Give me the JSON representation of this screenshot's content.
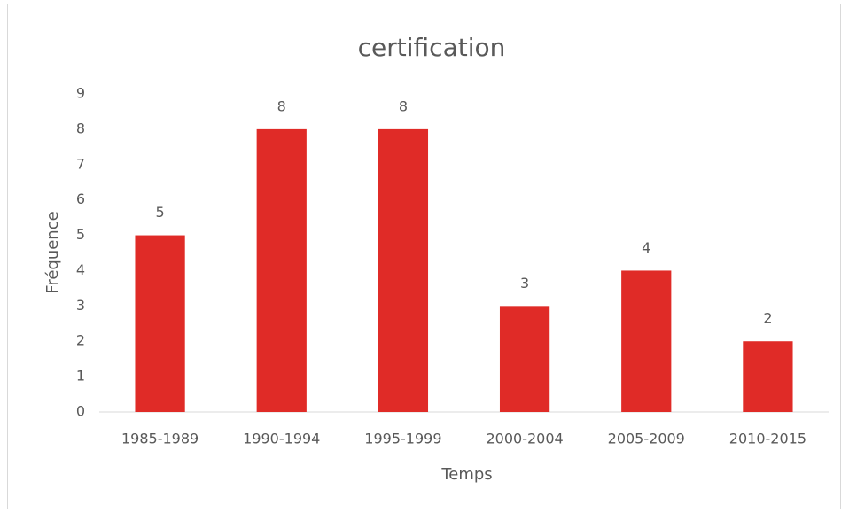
{
  "chart_data": {
    "type": "bar",
    "title": "certification",
    "x_label": "Temps",
    "y_label": "Fréquence",
    "categories": [
      "1985-1989",
      "1990-1994",
      "1995-1999",
      "2000-2004",
      "2005-2009",
      "2010-2015"
    ],
    "values": [
      5,
      8,
      8,
      3,
      4,
      2
    ],
    "color": "#e02b27",
    "ylim": [
      0,
      9
    ],
    "yticks": [
      0,
      1,
      2,
      3,
      4,
      5,
      6,
      7,
      8,
      9
    ],
    "grid": false
  }
}
